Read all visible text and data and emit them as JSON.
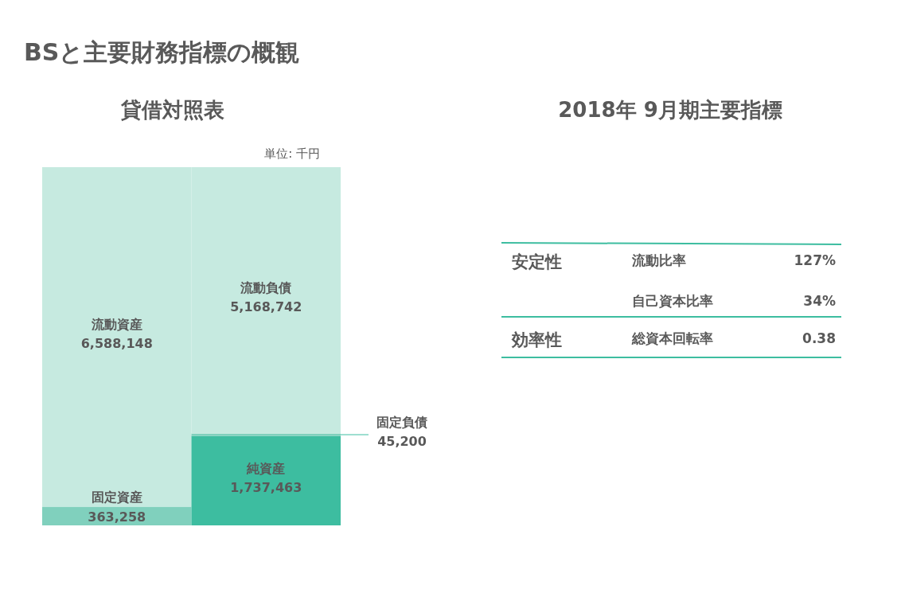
{
  "chart_data": [
    {
      "type": "bar",
      "title": "貸借対照表",
      "stacked": true,
      "categories": [
        null,
        null
      ],
      "series": [
        {
          "name": "固定資産",
          "color": "#80d0bd",
          "values": [
            363258,
            null
          ],
          "value_labels": [
            "363,258",
            null
          ]
        },
        {
          "name": "流動資産",
          "color": "#c6eae0",
          "values": [
            6588148,
            null
          ],
          "value_labels": [
            "6,588,148",
            null
          ]
        },
        {
          "name": "純資産",
          "color": "#3dbda0",
          "values": [
            null,
            1737463
          ],
          "value_labels": [
            null,
            "1,737,463"
          ]
        },
        {
          "name": "固定負債",
          "color": "#80d0bd",
          "values": [
            null,
            45200
          ],
          "value_labels": [
            null,
            "45,200"
          ]
        },
        {
          "name": "流動負債",
          "color": "#c6eae0",
          "values": [
            null,
            5168742
          ],
          "value_labels": [
            null,
            "5,168,742"
          ]
        }
      ],
      "annotations": [
        "BSと主要財務指標の概観",
        "単位: 千円"
      ]
    },
    {
      "type": "other",
      "title": "2018年 9月期主要指標",
      "categories": [
        "流動比率",
        "自己資本比率",
        "総資本回転率"
      ],
      "value_labels": [
        "127%",
        "34%",
        "0.38"
      ],
      "annotations": [
        "安定性",
        "効率性"
      ]
    }
  ]
}
